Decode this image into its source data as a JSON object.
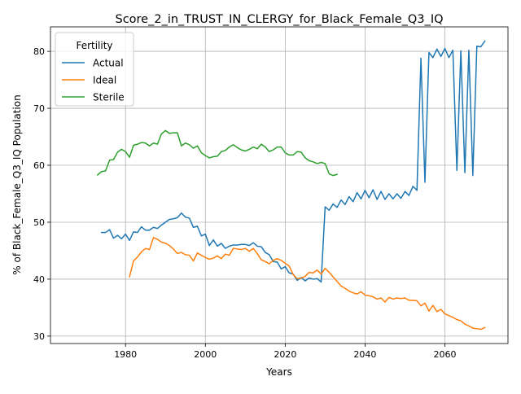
{
  "chart_data": {
    "type": "line",
    "title": "Score_2_in_TRUST_IN_CLERGY_for_Black_Female_Q3_IQ",
    "xlabel": "Years",
    "ylabel": "% of Black_Female_Q3_IQ Population",
    "xlim": [
      1961.2,
      2075.8
    ],
    "ylim": [
      28.7,
      84.3
    ],
    "x_ticks": [
      1980,
      2000,
      2020,
      2040,
      2060
    ],
    "y_ticks": [
      30,
      40,
      50,
      60,
      70,
      80
    ],
    "grid": true,
    "legend": {
      "title": "Fertility",
      "position": "upper left"
    },
    "series": [
      {
        "name": "Actual",
        "color": "#1f77b4",
        "x": [
          1974,
          1975,
          1976,
          1977,
          1978,
          1979,
          1980,
          1981,
          1982,
          1983,
          1984,
          1985,
          1986,
          1987,
          1988,
          1989,
          1990,
          1991,
          1992,
          1993,
          1994,
          1995,
          1996,
          1997,
          1998,
          1999,
          2000,
          2001,
          2002,
          2003,
          2004,
          2005,
          2006,
          2007,
          2008,
          2009,
          2010,
          2011,
          2012,
          2013,
          2014,
          2015,
          2016,
          2017,
          2018,
          2019,
          2020,
          2021,
          2022,
          2023,
          2024,
          2025,
          2026,
          2027,
          2028,
          2029,
          2030,
          2031,
          2032,
          2033,
          2034,
          2035,
          2036,
          2037,
          2038,
          2039,
          2040,
          2041,
          2042,
          2043,
          2044,
          2045,
          2046,
          2047,
          2048,
          2049,
          2050,
          2051,
          2052,
          2053,
          2054,
          2055,
          2056,
          2057,
          2058,
          2059,
          2060,
          2061,
          2062,
          2063,
          2064,
          2065,
          2066,
          2067,
          2068,
          2069,
          2070
        ],
        "values": [
          48.2,
          48.2,
          48.7,
          47.2,
          47.7,
          47.1,
          47.9,
          46.8,
          48.3,
          48.2,
          49.2,
          48.6,
          48.6,
          49.1,
          48.9,
          49.5,
          50.0,
          50.5,
          50.6,
          50.8,
          51.6,
          50.9,
          50.7,
          49.1,
          49.3,
          47.6,
          47.9,
          45.9,
          46.9,
          45.8,
          46.3,
          45.4,
          45.8,
          46.0,
          46.0,
          46.1,
          46.1,
          45.9,
          46.4,
          45.8,
          45.7,
          44.7,
          44.3,
          43.1,
          43.0,
          41.8,
          42.2,
          41.1,
          40.9,
          39.8,
          40.3,
          39.7,
          40.2,
          40.0,
          40.1,
          39.5,
          52.7,
          52.1,
          53.2,
          52.6,
          53.9,
          53.1,
          54.5,
          53.6,
          55.2,
          54.1,
          55.6,
          54.3,
          55.7,
          54.0,
          55.4,
          54.0,
          55.0,
          54.1,
          55.0,
          54.2,
          55.4,
          54.7,
          56.3,
          55.6,
          78.8,
          57.0,
          79.8,
          78.9,
          80.4,
          79.1,
          80.5,
          78.9,
          80.2,
          59.1,
          80.1,
          58.7,
          80.2,
          58.2,
          80.9,
          80.8,
          81.8
        ]
      },
      {
        "name": "Ideal",
        "color": "#ff7f0e",
        "x": [
          1981,
          1982,
          1983,
          1984,
          1985,
          1986,
          1987,
          1988,
          1989,
          1990,
          1991,
          1992,
          1993,
          1994,
          1995,
          1996,
          1997,
          1998,
          1999,
          2000,
          2001,
          2002,
          2003,
          2004,
          2005,
          2006,
          2007,
          2008,
          2009,
          2010,
          2011,
          2012,
          2013,
          2014,
          2015,
          2016,
          2017,
          2018,
          2019,
          2020,
          2021,
          2022,
          2023,
          2024,
          2025,
          2026,
          2027,
          2028,
          2029,
          2030,
          2031,
          2032,
          2033,
          2034,
          2035,
          2036,
          2037,
          2038,
          2039,
          2040,
          2041,
          2042,
          2043,
          2044,
          2045,
          2046,
          2047,
          2048,
          2049,
          2050,
          2051,
          2052,
          2053,
          2054,
          2055,
          2056,
          2057,
          2058,
          2059,
          2060,
          2061,
          2062,
          2063,
          2064,
          2065,
          2066,
          2067,
          2068,
          2069,
          2070
        ],
        "values": [
          40.4,
          43.2,
          43.9,
          44.8,
          45.4,
          45.2,
          47.3,
          47.0,
          46.5,
          46.3,
          45.9,
          45.3,
          44.5,
          44.7,
          44.3,
          44.2,
          43.2,
          44.6,
          44.2,
          43.8,
          43.5,
          43.7,
          44.1,
          43.6,
          44.4,
          44.2,
          45.4,
          45.3,
          45.2,
          45.4,
          44.9,
          45.4,
          44.5,
          43.4,
          43.1,
          42.7,
          43.3,
          43.6,
          43.3,
          42.8,
          42.3,
          40.8,
          40.1,
          40.2,
          40.5,
          41.2,
          41.1,
          41.6,
          40.9,
          41.9,
          41.2,
          40.4,
          39.6,
          38.8,
          38.4,
          37.9,
          37.6,
          37.4,
          37.8,
          37.2,
          37.1,
          36.9,
          36.5,
          36.7,
          36.0,
          36.8,
          36.5,
          36.7,
          36.6,
          36.7,
          36.3,
          36.3,
          36.2,
          35.3,
          35.8,
          34.4,
          35.4,
          34.3,
          34.7,
          33.9,
          33.6,
          33.3,
          32.9,
          32.7,
          32.1,
          31.8,
          31.4,
          31.3,
          31.2,
          31.5
        ]
      },
      {
        "name": "Sterile",
        "color": "#2ca02c",
        "x": [
          1973,
          1974,
          1975,
          1976,
          1977,
          1978,
          1979,
          1980,
          1981,
          1982,
          1983,
          1984,
          1985,
          1986,
          1987,
          1988,
          1989,
          1990,
          1991,
          1992,
          1993,
          1994,
          1995,
          1996,
          1997,
          1998,
          1999,
          2000,
          2001,
          2002,
          2003,
          2004,
          2005,
          2006,
          2007,
          2008,
          2009,
          2010,
          2011,
          2012,
          2013,
          2014,
          2015,
          2016,
          2017,
          2018,
          2019,
          2020,
          2021,
          2022,
          2023,
          2024,
          2025,
          2026,
          2027,
          2028,
          2029,
          2030,
          2031,
          2032,
          2033
        ],
        "values": [
          58.3,
          58.9,
          59.0,
          60.9,
          61.0,
          62.3,
          62.8,
          62.4,
          61.4,
          63.5,
          63.7,
          64.0,
          63.9,
          63.4,
          63.9,
          63.7,
          65.5,
          66.1,
          65.6,
          65.7,
          65.7,
          63.4,
          63.9,
          63.6,
          63.0,
          63.4,
          62.2,
          61.7,
          61.3,
          61.5,
          61.6,
          62.4,
          62.6,
          63.2,
          63.6,
          63.1,
          62.7,
          62.5,
          62.8,
          63.2,
          62.9,
          63.7,
          63.2,
          62.4,
          62.7,
          63.2,
          63.2,
          62.2,
          61.8,
          61.8,
          62.4,
          62.3,
          61.3,
          60.8,
          60.6,
          60.3,
          60.5,
          60.3,
          58.5,
          58.2,
          58.4
        ]
      }
    ]
  }
}
